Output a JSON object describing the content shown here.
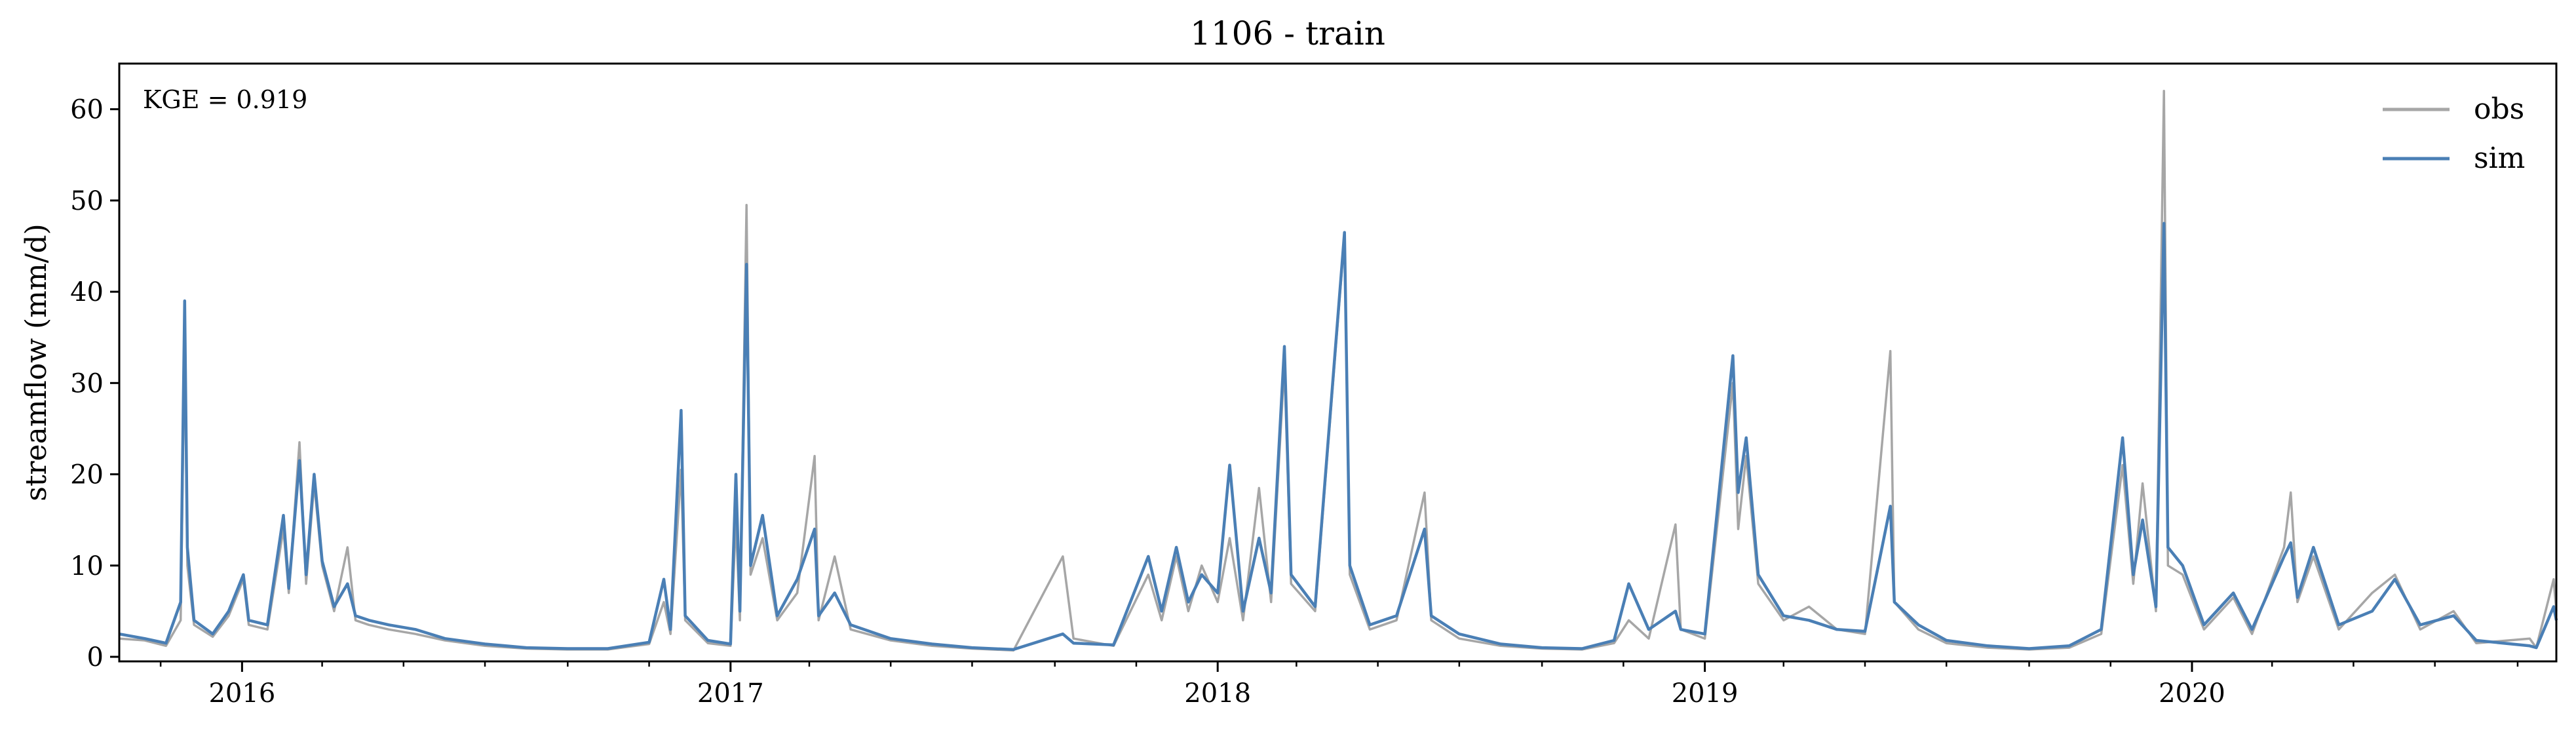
{
  "chart_data": {
    "type": "line",
    "title": "1106 - train",
    "xlabel": "",
    "ylabel": "streamflow (mm/d)",
    "xlim": [
      "2015-10-01",
      "2020-09-30"
    ],
    "ylim": [
      -0.5,
      65
    ],
    "yticks": [
      0,
      10,
      20,
      30,
      40,
      50,
      60
    ],
    "xticks": [
      {
        "date": "2016-01-01",
        "label": "2016"
      },
      {
        "date": "2017-01-01",
        "label": "2017"
      },
      {
        "date": "2018-01-01",
        "label": "2018"
      },
      {
        "date": "2019-01-01",
        "label": "2019"
      },
      {
        "date": "2020-01-01",
        "label": "2020"
      }
    ],
    "grid": false,
    "legend_position": "top-right",
    "annotation": "KGE = 0.919",
    "series": [
      {
        "name": "obs",
        "color": "#a6a6a6",
        "points": [
          [
            "2015-10-01",
            2.0
          ],
          [
            "2015-10-20",
            1.8
          ],
          [
            "2015-11-05",
            1.2
          ],
          [
            "2015-11-16",
            4.0
          ],
          [
            "2015-11-19",
            35.0
          ],
          [
            "2015-11-21",
            10.0
          ],
          [
            "2015-11-26",
            3.5
          ],
          [
            "2015-12-10",
            2.2
          ],
          [
            "2015-12-22",
            4.5
          ],
          [
            "2016-01-02",
            8.5
          ],
          [
            "2016-01-06",
            3.5
          ],
          [
            "2016-01-20",
            3.0
          ],
          [
            "2016-02-01",
            14.0
          ],
          [
            "2016-02-05",
            7.0
          ],
          [
            "2016-02-13",
            23.5
          ],
          [
            "2016-02-18",
            8.0
          ],
          [
            "2016-02-24",
            19.0
          ],
          [
            "2016-03-01",
            10.0
          ],
          [
            "2016-03-10",
            5.0
          ],
          [
            "2016-03-20",
            12.0
          ],
          [
            "2016-03-26",
            4.0
          ],
          [
            "2016-04-05",
            3.5
          ],
          [
            "2016-04-20",
            3.0
          ],
          [
            "2016-05-10",
            2.5
          ],
          [
            "2016-06-01",
            1.8
          ],
          [
            "2016-07-01",
            1.2
          ],
          [
            "2016-08-01",
            0.9
          ],
          [
            "2016-09-01",
            0.8
          ],
          [
            "2016-10-01",
            0.8
          ],
          [
            "2016-11-01",
            1.4
          ],
          [
            "2016-11-12",
            6.0
          ],
          [
            "2016-11-17",
            2.5
          ],
          [
            "2016-11-25",
            20.5
          ],
          [
            "2016-11-28",
            4.0
          ],
          [
            "2016-12-15",
            1.5
          ],
          [
            "2017-01-01",
            1.2
          ],
          [
            "2017-01-05",
            15.0
          ],
          [
            "2017-01-08",
            4.0
          ],
          [
            "2017-01-13",
            49.5
          ],
          [
            "2017-01-16",
            9.0
          ],
          [
            "2017-01-25",
            13.0
          ],
          [
            "2017-02-05",
            4.0
          ],
          [
            "2017-02-20",
            7.0
          ],
          [
            "2017-03-05",
            22.0
          ],
          [
            "2017-03-08",
            4.0
          ],
          [
            "2017-03-20",
            11.0
          ],
          [
            "2017-04-01",
            3.0
          ],
          [
            "2017-05-01",
            1.8
          ],
          [
            "2017-06-01",
            1.2
          ],
          [
            "2017-07-01",
            0.9
          ],
          [
            "2017-08-01",
            0.7
          ],
          [
            "2017-09-07",
            11.0
          ],
          [
            "2017-09-15",
            2.0
          ],
          [
            "2017-10-15",
            1.2
          ],
          [
            "2017-11-10",
            9.0
          ],
          [
            "2017-11-20",
            4.0
          ],
          [
            "2017-12-01",
            11.0
          ],
          [
            "2017-12-10",
            5.0
          ],
          [
            "2017-12-20",
            10.0
          ],
          [
            "2018-01-01",
            6.0
          ],
          [
            "2018-01-10",
            13.0
          ],
          [
            "2018-01-20",
            4.0
          ],
          [
            "2018-02-01",
            18.5
          ],
          [
            "2018-02-10",
            6.0
          ],
          [
            "2018-02-20",
            32.0
          ],
          [
            "2018-02-25",
            8.0
          ],
          [
            "2018-03-15",
            5.0
          ],
          [
            "2018-04-06",
            46.0
          ],
          [
            "2018-04-10",
            9.0
          ],
          [
            "2018-04-25",
            3.0
          ],
          [
            "2018-05-15",
            4.0
          ],
          [
            "2018-06-05",
            18.0
          ],
          [
            "2018-06-10",
            4.0
          ],
          [
            "2018-07-01",
            2.0
          ],
          [
            "2018-08-01",
            1.2
          ],
          [
            "2018-09-01",
            0.9
          ],
          [
            "2018-10-01",
            0.8
          ],
          [
            "2018-10-25",
            1.5
          ],
          [
            "2018-11-05",
            4.0
          ],
          [
            "2018-11-20",
            2.0
          ],
          [
            "2018-12-10",
            14.5
          ],
          [
            "2018-12-14",
            3.0
          ],
          [
            "2019-01-01",
            2.0
          ],
          [
            "2019-01-22",
            30.0
          ],
          [
            "2019-01-26",
            14.0
          ],
          [
            "2019-02-01",
            22.0
          ],
          [
            "2019-02-10",
            8.0
          ],
          [
            "2019-03-01",
            4.0
          ],
          [
            "2019-03-20",
            5.5
          ],
          [
            "2019-04-10",
            3.0
          ],
          [
            "2019-05-01",
            2.5
          ],
          [
            "2019-05-20",
            33.5
          ],
          [
            "2019-05-23",
            6.0
          ],
          [
            "2019-06-10",
            3.0
          ],
          [
            "2019-07-01",
            1.5
          ],
          [
            "2019-08-01",
            1.0
          ],
          [
            "2019-09-01",
            0.8
          ],
          [
            "2019-10-01",
            1.0
          ],
          [
            "2019-10-25",
            2.5
          ],
          [
            "2019-11-10",
            21.0
          ],
          [
            "2019-11-18",
            8.0
          ],
          [
            "2019-11-25",
            19.0
          ],
          [
            "2019-12-05",
            5.0
          ],
          [
            "2019-12-11",
            62.0
          ],
          [
            "2019-12-14",
            10.0
          ],
          [
            "2019-12-25",
            9.0
          ],
          [
            "2020-01-10",
            3.0
          ],
          [
            "2020-02-01",
            6.5
          ],
          [
            "2020-02-15",
            2.5
          ],
          [
            "2020-03-10",
            12.0
          ],
          [
            "2020-03-15",
            18.0
          ],
          [
            "2020-03-20",
            6.0
          ],
          [
            "2020-04-01",
            11.0
          ],
          [
            "2020-04-20",
            3.0
          ],
          [
            "2020-05-15",
            7.0
          ],
          [
            "2020-06-01",
            9.0
          ],
          [
            "2020-06-20",
            3.0
          ],
          [
            "2020-07-15",
            5.0
          ],
          [
            "2020-08-01",
            1.5
          ],
          [
            "2020-09-10",
            2.0
          ],
          [
            "2020-09-15",
            1.0
          ],
          [
            "2020-09-28",
            8.5
          ],
          [
            "2020-09-30",
            5.0
          ]
        ]
      },
      {
        "name": "sim",
        "color": "#4a7fb5",
        "points": [
          [
            "2015-10-01",
            2.5
          ],
          [
            "2015-10-20",
            2.0
          ],
          [
            "2015-11-05",
            1.5
          ],
          [
            "2015-11-16",
            6.0
          ],
          [
            "2015-11-19",
            39.0
          ],
          [
            "2015-11-21",
            12.0
          ],
          [
            "2015-11-26",
            4.0
          ],
          [
            "2015-12-10",
            2.5
          ],
          [
            "2015-12-22",
            5.0
          ],
          [
            "2016-01-02",
            9.0
          ],
          [
            "2016-01-06",
            4.0
          ],
          [
            "2016-01-20",
            3.5
          ],
          [
            "2016-02-01",
            15.5
          ],
          [
            "2016-02-05",
            7.5
          ],
          [
            "2016-02-13",
            21.5
          ],
          [
            "2016-02-18",
            9.0
          ],
          [
            "2016-02-24",
            20.0
          ],
          [
            "2016-03-01",
            10.5
          ],
          [
            "2016-03-10",
            5.5
          ],
          [
            "2016-03-20",
            8.0
          ],
          [
            "2016-03-26",
            4.5
          ],
          [
            "2016-04-05",
            4.0
          ],
          [
            "2016-04-20",
            3.5
          ],
          [
            "2016-05-10",
            3.0
          ],
          [
            "2016-06-01",
            2.0
          ],
          [
            "2016-07-01",
            1.4
          ],
          [
            "2016-08-01",
            1.0
          ],
          [
            "2016-09-01",
            0.9
          ],
          [
            "2016-10-01",
            0.9
          ],
          [
            "2016-11-01",
            1.6
          ],
          [
            "2016-11-12",
            8.5
          ],
          [
            "2016-11-17",
            3.0
          ],
          [
            "2016-11-25",
            27.0
          ],
          [
            "2016-11-28",
            4.5
          ],
          [
            "2016-12-15",
            1.8
          ],
          [
            "2017-01-01",
            1.4
          ],
          [
            "2017-01-05",
            20.0
          ],
          [
            "2017-01-08",
            5.0
          ],
          [
            "2017-01-13",
            43.0
          ],
          [
            "2017-01-16",
            10.0
          ],
          [
            "2017-01-25",
            15.5
          ],
          [
            "2017-02-05",
            4.5
          ],
          [
            "2017-02-20",
            8.5
          ],
          [
            "2017-03-05",
            14.0
          ],
          [
            "2017-03-08",
            4.5
          ],
          [
            "2017-03-20",
            7.0
          ],
          [
            "2017-04-01",
            3.5
          ],
          [
            "2017-05-01",
            2.0
          ],
          [
            "2017-06-01",
            1.4
          ],
          [
            "2017-07-01",
            1.0
          ],
          [
            "2017-08-01",
            0.8
          ],
          [
            "2017-09-07",
            2.5
          ],
          [
            "2017-09-15",
            1.5
          ],
          [
            "2017-10-15",
            1.3
          ],
          [
            "2017-11-10",
            11.0
          ],
          [
            "2017-11-20",
            5.0
          ],
          [
            "2017-12-01",
            12.0
          ],
          [
            "2017-12-10",
            6.0
          ],
          [
            "2017-12-20",
            9.0
          ],
          [
            "2018-01-01",
            7.0
          ],
          [
            "2018-01-10",
            21.0
          ],
          [
            "2018-01-20",
            5.0
          ],
          [
            "2018-02-01",
            13.0
          ],
          [
            "2018-02-10",
            7.0
          ],
          [
            "2018-02-20",
            34.0
          ],
          [
            "2018-02-25",
            9.0
          ],
          [
            "2018-03-15",
            5.5
          ],
          [
            "2018-04-06",
            46.5
          ],
          [
            "2018-04-10",
            10.0
          ],
          [
            "2018-04-25",
            3.5
          ],
          [
            "2018-05-15",
            4.5
          ],
          [
            "2018-06-05",
            14.0
          ],
          [
            "2018-06-10",
            4.5
          ],
          [
            "2018-07-01",
            2.5
          ],
          [
            "2018-08-01",
            1.4
          ],
          [
            "2018-09-01",
            1.0
          ],
          [
            "2018-10-01",
            0.9
          ],
          [
            "2018-10-25",
            1.8
          ],
          [
            "2018-11-05",
            8.0
          ],
          [
            "2018-11-20",
            3.0
          ],
          [
            "2018-12-10",
            5.0
          ],
          [
            "2018-12-14",
            3.0
          ],
          [
            "2019-01-01",
            2.5
          ],
          [
            "2019-01-22",
            33.0
          ],
          [
            "2019-01-26",
            18.0
          ],
          [
            "2019-02-01",
            24.0
          ],
          [
            "2019-02-10",
            9.0
          ],
          [
            "2019-03-01",
            4.5
          ],
          [
            "2019-03-20",
            4.0
          ],
          [
            "2019-04-10",
            3.0
          ],
          [
            "2019-05-01",
            2.8
          ],
          [
            "2019-05-20",
            16.5
          ],
          [
            "2019-05-23",
            6.0
          ],
          [
            "2019-06-10",
            3.5
          ],
          [
            "2019-07-01",
            1.8
          ],
          [
            "2019-08-01",
            1.2
          ],
          [
            "2019-09-01",
            0.9
          ],
          [
            "2019-10-01",
            1.2
          ],
          [
            "2019-10-25",
            3.0
          ],
          [
            "2019-11-10",
            24.0
          ],
          [
            "2019-11-18",
            9.0
          ],
          [
            "2019-11-25",
            15.0
          ],
          [
            "2019-12-05",
            5.5
          ],
          [
            "2019-12-11",
            47.5
          ],
          [
            "2019-12-14",
            12.0
          ],
          [
            "2019-12-25",
            10.0
          ],
          [
            "2020-01-10",
            3.5
          ],
          [
            "2020-02-01",
            7.0
          ],
          [
            "2020-02-15",
            3.0
          ],
          [
            "2020-03-10",
            11.0
          ],
          [
            "2020-03-15",
            12.5
          ],
          [
            "2020-03-20",
            6.5
          ],
          [
            "2020-04-01",
            12.0
          ],
          [
            "2020-04-20",
            3.5
          ],
          [
            "2020-05-15",
            5.0
          ],
          [
            "2020-06-01",
            8.5
          ],
          [
            "2020-06-20",
            3.5
          ],
          [
            "2020-07-15",
            4.5
          ],
          [
            "2020-08-01",
            1.8
          ],
          [
            "2020-09-10",
            1.2
          ],
          [
            "2020-09-15",
            1.0
          ],
          [
            "2020-09-28",
            5.5
          ],
          [
            "2020-09-30",
            4.0
          ]
        ]
      }
    ]
  }
}
